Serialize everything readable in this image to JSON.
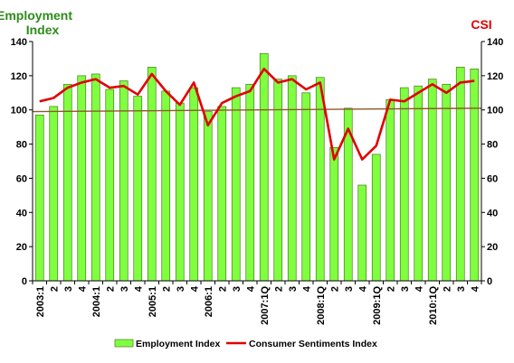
{
  "chart_data": {
    "type": "bar",
    "left_axis_title": [
      "Employment",
      "Index"
    ],
    "right_axis_title": "CSI",
    "ylim": [
      0,
      140
    ],
    "yticks": [
      0,
      20,
      40,
      60,
      80,
      100,
      120,
      140
    ],
    "grid": false,
    "legend_position": "bottom",
    "categories": [
      "2003:1",
      "2",
      "3",
      "4",
      "2004:1",
      "2",
      "3",
      "4",
      "2005:1",
      "2",
      "3",
      "4",
      "2006:1",
      "2",
      "3",
      "4",
      "2007:1Q",
      "2",
      "3",
      "4",
      "2008:1Q",
      "2",
      "3",
      "4",
      "2009:1Q",
      "2",
      "3",
      "4",
      "2010:1Q",
      "2",
      "3",
      "4"
    ],
    "series": [
      {
        "name": "Employment Index",
        "kind": "bar",
        "color": "#80ff40",
        "edge": "#4a7a1a",
        "values": [
          97,
          102,
          115,
          120,
          121,
          112,
          117,
          108,
          125,
          111,
          104,
          113,
          99,
          102,
          113,
          115,
          133,
          118,
          120,
          110,
          119,
          78,
          101,
          56,
          74,
          106,
          113,
          114,
          118,
          115,
          125,
          124
        ]
      },
      {
        "name": "Consumer Sentiments Index",
        "kind": "line",
        "color": "#e00000",
        "values": [
          105,
          107,
          113,
          116,
          118,
          113,
          114,
          109,
          121,
          111,
          103,
          116,
          91,
          104,
          108,
          111,
          124,
          116,
          118,
          112,
          116,
          71,
          89,
          71,
          79,
          106,
          105,
          110,
          115,
          110,
          116,
          117
        ]
      }
    ],
    "reference_line": {
      "value": 99,
      "end_value": 101,
      "color": "#8b5a2b"
    },
    "colors": {
      "left_title": "#2e8b1a",
      "right_title": "#e00000"
    }
  }
}
